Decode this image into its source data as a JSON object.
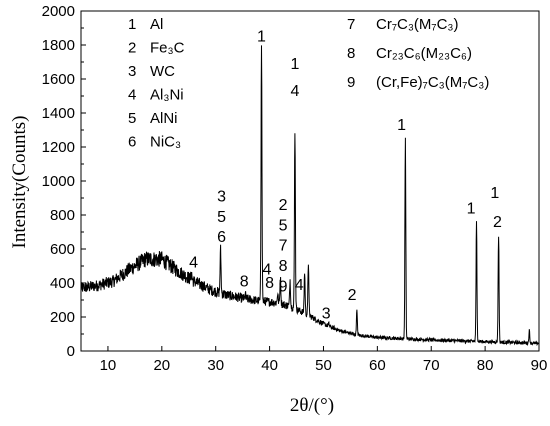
{
  "chart_data": {
    "type": "line",
    "xlabel": "2θ/(°)",
    "ylabel": "Intensity(Counts)",
    "xlim": [
      5,
      90
    ],
    "ylim": [
      0,
      2000
    ],
    "x_ticks": [
      10,
      20,
      30,
      40,
      50,
      60,
      70,
      80,
      90
    ],
    "y_ticks": [
      0,
      200,
      400,
      600,
      800,
      1000,
      1200,
      1400,
      1600,
      1800,
      2000
    ],
    "series": [
      {
        "color": "#000000",
        "baseline": [
          [
            5,
            370
          ],
          [
            8,
            385
          ],
          [
            11,
            410
          ],
          [
            14,
            480
          ],
          [
            17,
            540
          ],
          [
            20,
            540
          ],
          [
            23,
            470
          ],
          [
            26,
            410
          ],
          [
            29,
            360
          ],
          [
            32,
            330
          ],
          [
            35,
            310
          ],
          [
            38,
            295
          ],
          [
            40,
            290
          ],
          [
            42,
            280
          ],
          [
            44,
            260
          ],
          [
            47,
            215
          ],
          [
            50,
            160
          ],
          [
            53,
            120
          ],
          [
            56,
            95
          ],
          [
            60,
            80
          ],
          [
            65,
            72
          ],
          [
            70,
            65
          ],
          [
            75,
            60
          ],
          [
            80,
            55
          ],
          [
            85,
            50
          ],
          [
            90,
            45
          ]
        ],
        "peaks": [
          [
            25.5,
            460
          ],
          [
            30.9,
            600
          ],
          [
            35.5,
            330
          ],
          [
            38.5,
            1820
          ],
          [
            41.5,
            340
          ],
          [
            42.0,
            440
          ],
          [
            43.8,
            420
          ],
          [
            44.7,
            1300
          ],
          [
            46.5,
            460
          ],
          [
            47.2,
            520
          ],
          [
            51.0,
            160
          ],
          [
            56.2,
            240
          ],
          [
            65.2,
            1250
          ],
          [
            78.4,
            760
          ],
          [
            82.5,
            680
          ],
          [
            88.2,
            120
          ]
        ]
      }
    ],
    "peak_labels": [
      {
        "text": "1",
        "x": 38.5,
        "y": 1820
      },
      {
        "text": "1",
        "x": 44.7,
        "y": 1660
      },
      {
        "text": "4",
        "x": 44.7,
        "y": 1500
      },
      {
        "text": "3",
        "x": 31.1,
        "y": 880
      },
      {
        "text": "5",
        "x": 31.1,
        "y": 760
      },
      {
        "text": "6",
        "x": 31.1,
        "y": 640
      },
      {
        "text": "4",
        "x": 25.9,
        "y": 490
      },
      {
        "text": "8",
        "x": 35.3,
        "y": 380
      },
      {
        "text": "2",
        "x": 42.5,
        "y": 830
      },
      {
        "text": "5",
        "x": 42.5,
        "y": 710
      },
      {
        "text": "7",
        "x": 42.5,
        "y": 590
      },
      {
        "text": "8",
        "x": 42.5,
        "y": 470
      },
      {
        "text": "9",
        "x": 42.5,
        "y": 350
      },
      {
        "text": "4",
        "x": 39.5,
        "y": 450
      },
      {
        "text": "8",
        "x": 40.0,
        "y": 370
      },
      {
        "text": "4",
        "x": 45.5,
        "y": 360
      },
      {
        "text": "3",
        "x": 50.5,
        "y": 190
      },
      {
        "text": "2",
        "x": 55.3,
        "y": 300
      },
      {
        "text": "1",
        "x": 64.5,
        "y": 1300
      },
      {
        "text": "1",
        "x": 77.4,
        "y": 810
      },
      {
        "text": "1",
        "x": 81.8,
        "y": 900
      },
      {
        "text": "2",
        "x": 82.3,
        "y": 730
      }
    ],
    "legend_left": [
      {
        "num": "1",
        "label": "Al"
      },
      {
        "num": "2",
        "label": "Fe₃C"
      },
      {
        "num": "3",
        "label": "WC"
      },
      {
        "num": "4",
        "label": "Al₃Ni"
      },
      {
        "num": "5",
        "label": "AlNi"
      },
      {
        "num": "6",
        "label": "NiC₃"
      }
    ],
    "legend_right": [
      {
        "num": "7",
        "label": "Cr₇C₃(M₇C₃)"
      },
      {
        "num": "8",
        "label": "Cr₂₃C₆(M₂₃C₆)"
      },
      {
        "num": "9",
        "label": "(Cr,Fe)₇C₃(M₇C₃)"
      }
    ]
  }
}
